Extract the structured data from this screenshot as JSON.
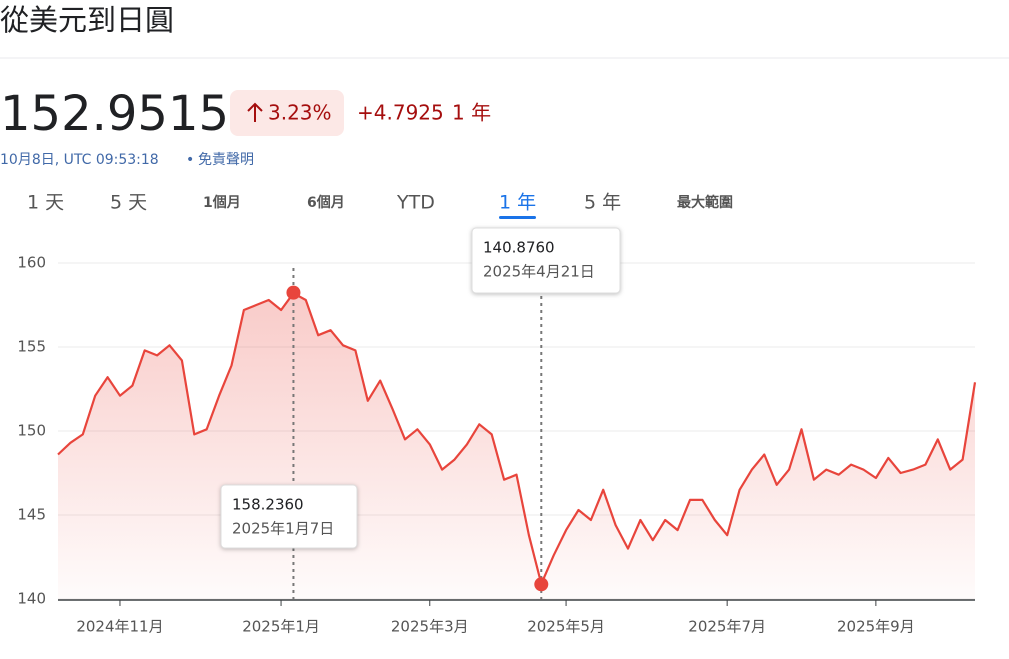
{
  "header": {
    "title": "從美元到日圓",
    "price": "152.9515",
    "change_percent": "3.23%",
    "change": "+4.7925",
    "change_period": "1 年",
    "timestamp": "10月8日, UTC 09:53:18",
    "separator": "•",
    "disclaimer": "免責聲明"
  },
  "tabs": {
    "items": [
      "1 天",
      "5 天",
      "1個月",
      "6個月",
      "YTD",
      "1 年",
      "5 年",
      "最大範圍"
    ],
    "selected": "1 年"
  },
  "chart_data": {
    "type": "line",
    "color": "#e8453c",
    "grid": true,
    "categories": [
      null,
      null,
      null,
      null,
      null,
      "2024年11月",
      null,
      null,
      null,
      null,
      null,
      null,
      null,
      null,
      null,
      null,
      null,
      null,
      "2025年1月",
      null,
      null,
      null,
      null,
      null,
      null,
      null,
      null,
      null,
      null,
      null,
      "2025年3月",
      null,
      null,
      null,
      null,
      null,
      null,
      null,
      null,
      null,
      null,
      "2025年5月",
      null,
      null,
      null,
      null,
      null,
      null,
      null,
      null,
      null,
      null,
      null,
      null,
      "2025年7月",
      null,
      null,
      null,
      null,
      null,
      null,
      null,
      null,
      null,
      null,
      null,
      "2025年9月",
      null,
      null,
      null,
      null,
      null,
      null,
      null,
      null
    ],
    "values": [
      148.6,
      149.3,
      149.8,
      152.1,
      153.2,
      152.1,
      152.7,
      154.8,
      154.5,
      155.1,
      154.2,
      149.8,
      150.1,
      152.1,
      153.9,
      157.2,
      157.5,
      157.8,
      157.2,
      158.2,
      157.8,
      155.7,
      156.0,
      155.1,
      154.8,
      151.8,
      153.0,
      151.3,
      149.5,
      150.1,
      149.2,
      147.7,
      148.3,
      149.2,
      150.4,
      149.8,
      147.1,
      147.4,
      143.8,
      140.9,
      142.6,
      144.1,
      145.3,
      144.7,
      146.5,
      144.4,
      143.0,
      144.7,
      143.5,
      144.7,
      144.1,
      145.9,
      145.9,
      144.7,
      143.8,
      146.5,
      147.7,
      148.6,
      146.8,
      147.7,
      150.1,
      147.1,
      147.7,
      147.4,
      148.0,
      147.7,
      147.2,
      148.4,
      147.5,
      147.7,
      148.0,
      149.5,
      147.7,
      148.3,
      152.9
    ],
    "ylim": [
      140,
      160
    ],
    "yticks": [
      140,
      145,
      150,
      155,
      160
    ],
    "annotations": [
      {
        "value": 158.236,
        "label": "158.2360",
        "date": "2025年1月7日"
      },
      {
        "value": 140.876,
        "label": "140.8760",
        "date": "2025年4月21日"
      }
    ]
  }
}
